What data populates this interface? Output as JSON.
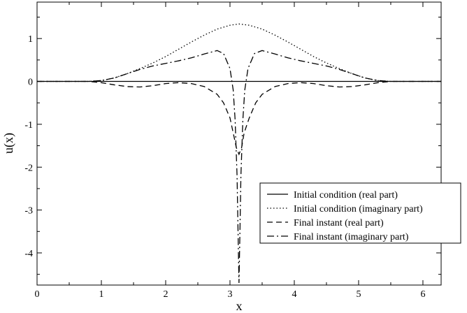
{
  "chart_data": {
    "type": "line",
    "title": "",
    "xlabel": "x",
    "ylabel": "u(x)",
    "xlim": [
      0,
      6.2832
    ],
    "ylim": [
      -4.75,
      1.85
    ],
    "xticks": [
      0,
      1,
      2,
      3,
      4,
      5,
      6
    ],
    "yticks": [
      -4,
      -3,
      -2,
      -1,
      0,
      1
    ],
    "grid": false,
    "legend_position": "bottom-right",
    "series": [
      {
        "name": "Initial condition (real part)",
        "style": "solid",
        "x": [
          0,
          6.2832
        ],
        "y": [
          0,
          0
        ]
      },
      {
        "name": "Initial condition (imaginary part)",
        "style": "dotted",
        "x": [
          0,
          0.8,
          1.0,
          1.2,
          1.4,
          1.6,
          1.8,
          2.0,
          2.2,
          2.4,
          2.6,
          2.8,
          3.0,
          3.14,
          3.3,
          3.5,
          3.7,
          3.9,
          4.1,
          4.3,
          4.5,
          4.7,
          4.9,
          5.1,
          5.3,
          5.5,
          6.2832
        ],
        "y": [
          0,
          0,
          0.02,
          0.08,
          0.18,
          0.3,
          0.43,
          0.58,
          0.75,
          0.92,
          1.08,
          1.22,
          1.31,
          1.34,
          1.31,
          1.22,
          1.08,
          0.92,
          0.75,
          0.58,
          0.43,
          0.3,
          0.18,
          0.08,
          0.02,
          0,
          0
        ]
      },
      {
        "name": "Final instant (real part)",
        "style": "dashed",
        "x": [
          0,
          0.8,
          1.0,
          1.2,
          1.4,
          1.6,
          1.8,
          2.0,
          2.2,
          2.4,
          2.6,
          2.8,
          2.9,
          3.0,
          3.05,
          3.1,
          3.14,
          3.18,
          3.22,
          3.3,
          3.4,
          3.5,
          3.7,
          3.9,
          4.1,
          4.3,
          4.5,
          4.7,
          4.9,
          5.1,
          5.3,
          5.5,
          6.2832
        ],
        "y": [
          0,
          0,
          -0.03,
          -0.08,
          -0.12,
          -0.13,
          -0.1,
          -0.05,
          -0.03,
          -0.05,
          -0.12,
          -0.3,
          -0.5,
          -0.85,
          -1.2,
          -1.55,
          -1.7,
          -1.55,
          -1.2,
          -0.85,
          -0.5,
          -0.3,
          -0.12,
          -0.05,
          -0.03,
          -0.05,
          -0.1,
          -0.13,
          -0.12,
          -0.08,
          -0.03,
          0,
          0
        ]
      },
      {
        "name": "Final instant (imaginary part)",
        "style": "dashdot",
        "x": [
          0,
          0.8,
          1.0,
          1.2,
          1.4,
          1.6,
          1.8,
          2.0,
          2.2,
          2.4,
          2.6,
          2.8,
          2.9,
          3.0,
          3.05,
          3.08,
          3.11,
          3.13,
          3.14,
          3.15,
          3.17,
          3.2,
          3.23,
          3.28,
          3.38,
          3.5,
          3.7,
          3.9,
          4.1,
          4.3,
          4.5,
          4.7,
          4.9,
          5.1,
          5.3,
          5.5,
          6.2832
        ],
        "y": [
          0,
          0,
          0.02,
          0.08,
          0.18,
          0.28,
          0.36,
          0.42,
          0.48,
          0.55,
          0.64,
          0.72,
          0.65,
          0.3,
          -0.2,
          -0.9,
          -2.2,
          -3.9,
          -4.7,
          -3.9,
          -2.2,
          -0.9,
          -0.2,
          0.3,
          0.65,
          0.72,
          0.64,
          0.55,
          0.48,
          0.42,
          0.36,
          0.28,
          0.18,
          0.08,
          0.02,
          0,
          0
        ]
      }
    ]
  }
}
